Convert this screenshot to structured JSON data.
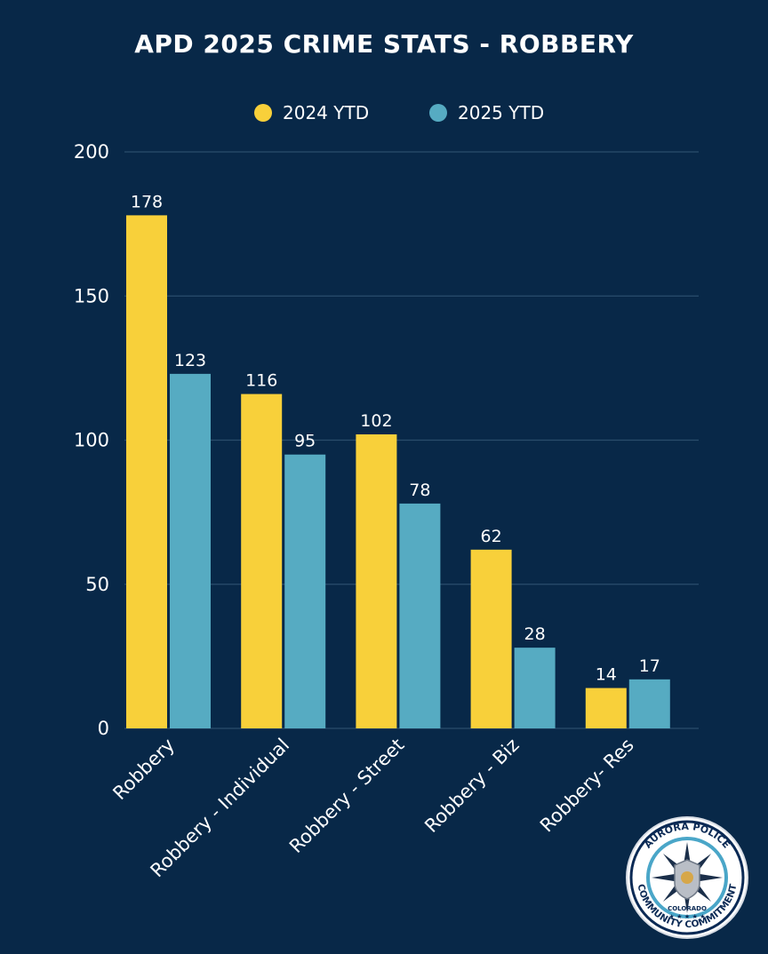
{
  "chart_data": {
    "type": "bar",
    "title": "APD 2025 CRIME STATS - ROBBERY",
    "categories": [
      "Robbery",
      "Robbery - Individual",
      "Robbery - Street",
      "Robbery - Biz",
      "Robbery- Res"
    ],
    "series": [
      {
        "name": "2024 YTD",
        "color": "#f8d03a",
        "values": [
          178,
          116,
          102,
          62,
          14
        ]
      },
      {
        "name": "2025 YTD",
        "color": "#56abc2",
        "values": [
          123,
          95,
          78,
          28,
          17
        ]
      }
    ],
    "ylim": [
      0,
      200
    ],
    "yticks": [
      0,
      50,
      100,
      150,
      200
    ],
    "grid": true,
    "legend_position": "top-center",
    "data_labels": true
  },
  "seal": {
    "top_text": "AURORA POLICE",
    "middle_text": "COLORADO",
    "bottom_text": "COMMUNITY COMMITMENT"
  },
  "colors": {
    "background": "#082848",
    "gridline": "#2a4d6c",
    "text": "#ffffff"
  }
}
